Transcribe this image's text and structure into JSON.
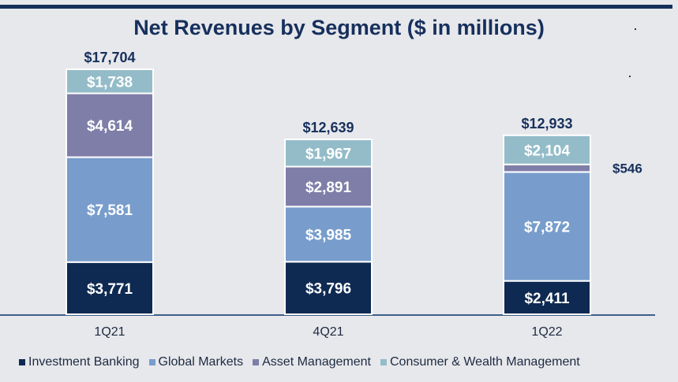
{
  "chart_data": {
    "type": "bar",
    "stacked": true,
    "title": "Net Revenues by Segment ($ in millions)",
    "xlabel": "",
    "ylabel": "",
    "ylim": [
      0,
      17704
    ],
    "categories": [
      "1Q21",
      "4Q21",
      "1Q22"
    ],
    "series": [
      {
        "name": "Investment Banking",
        "color": "#0e2a52",
        "values": [
          3771,
          3796,
          2411
        ],
        "labels": [
          "$3,771",
          "$3,796",
          "$2,411"
        ]
      },
      {
        "name": "Global Markets",
        "color": "#789dcc",
        "values": [
          7581,
          3985,
          7872
        ],
        "labels": [
          "$7,581",
          "$3,985",
          "$7,872"
        ]
      },
      {
        "name": "Asset Management",
        "color": "#7e7ea8",
        "values": [
          4614,
          2891,
          546
        ],
        "labels": [
          "$4,614",
          "$2,891",
          "$546"
        ]
      },
      {
        "name": "Consumer & Wealth Management",
        "color": "#93bcc8",
        "values": [
          1738,
          1967,
          2104
        ],
        "labels": [
          "$1,738",
          "$1,967",
          "$2,104"
        ]
      }
    ],
    "totals": [
      17704,
      12639,
      12933
    ],
    "total_labels": [
      "$17,704",
      "$12,639",
      "$12,933"
    ],
    "grid": false,
    "legend_position": "bottom"
  }
}
